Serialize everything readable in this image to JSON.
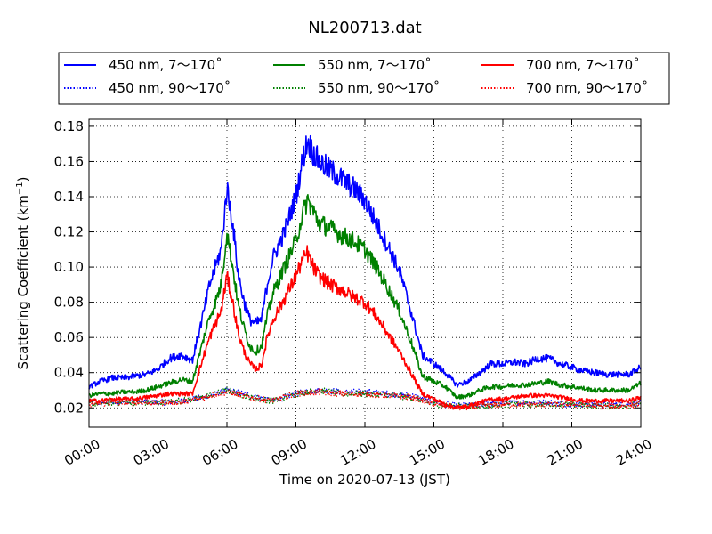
{
  "chart_data": {
    "type": "line",
    "title": "NL200713.dat",
    "xlabel": "Time on 2020-07-13 (JST)",
    "ylabel_main": "Scattering Coefficient (km",
    "ylabel_sup": "−1",
    "ylabel_close": ")",
    "x_unit": "hour",
    "xlim": [
      0,
      24
    ],
    "ylim": [
      0.009,
      0.184
    ],
    "x_ticks": [
      0,
      3,
      6,
      9,
      12,
      15,
      18,
      21,
      24
    ],
    "x_tick_labels": [
      "00:00",
      "03:00",
      "06:00",
      "09:00",
      "12:00",
      "15:00",
      "18:00",
      "21:00",
      "24:00"
    ],
    "y_ticks": [
      0.02,
      0.04,
      0.06,
      0.08,
      0.1,
      0.12,
      0.14,
      0.16,
      0.18
    ],
    "y_tick_labels": [
      "0.02",
      "0.04",
      "0.06",
      "0.08",
      "0.10",
      "0.12",
      "0.14",
      "0.16",
      "0.18"
    ],
    "grid": true,
    "legend_position": "top",
    "series": [
      {
        "name": "450 nm, 7～170˚",
        "color": "#0000ff",
        "style": "solid",
        "x": [
          0,
          0.5,
          1,
          1.5,
          2,
          2.5,
          3,
          3.5,
          4,
          4.5,
          5,
          5.25,
          5.5,
          5.75,
          6,
          6.25,
          6.5,
          6.75,
          7,
          7.25,
          7.5,
          7.75,
          8,
          8.5,
          9,
          9.25,
          9.5,
          9.75,
          10,
          10.5,
          11,
          11.5,
          12,
          12.5,
          13,
          13.5,
          14,
          14.5,
          15,
          15.5,
          16,
          16.5,
          17,
          17.5,
          18,
          18.5,
          19,
          19.5,
          20,
          20.5,
          21,
          21.5,
          22,
          22.5,
          23,
          23.5,
          24
        ],
        "y": [
          0.032,
          0.035,
          0.037,
          0.037,
          0.038,
          0.039,
          0.042,
          0.048,
          0.05,
          0.047,
          0.075,
          0.09,
          0.1,
          0.11,
          0.145,
          0.125,
          0.095,
          0.08,
          0.07,
          0.068,
          0.07,
          0.09,
          0.105,
          0.12,
          0.14,
          0.158,
          0.172,
          0.165,
          0.16,
          0.155,
          0.15,
          0.145,
          0.138,
          0.125,
          0.112,
          0.098,
          0.075,
          0.05,
          0.045,
          0.04,
          0.033,
          0.035,
          0.04,
          0.045,
          0.045,
          0.046,
          0.045,
          0.048,
          0.048,
          0.045,
          0.043,
          0.041,
          0.04,
          0.039,
          0.039,
          0.039,
          0.043
        ]
      },
      {
        "name": "450 nm, 90～170˚",
        "color": "#0000ff",
        "style": "dotted",
        "x": [
          0,
          1,
          2,
          3,
          4,
          5,
          6,
          7,
          8,
          9,
          10,
          11,
          12,
          13,
          14,
          15,
          16,
          17,
          18,
          19,
          20,
          21,
          22,
          23,
          24
        ],
        "y": [
          0.023,
          0.023,
          0.024,
          0.023,
          0.024,
          0.026,
          0.03,
          0.027,
          0.024,
          0.028,
          0.03,
          0.029,
          0.029,
          0.028,
          0.027,
          0.023,
          0.021,
          0.022,
          0.023,
          0.023,
          0.023,
          0.022,
          0.022,
          0.022,
          0.023
        ]
      },
      {
        "name": "550 nm, 7～170˚",
        "color": "#008000",
        "style": "solid",
        "x": [
          0,
          0.5,
          1,
          1.5,
          2,
          2.5,
          3,
          3.5,
          4,
          4.5,
          5,
          5.25,
          5.5,
          5.75,
          6,
          6.25,
          6.5,
          6.75,
          7,
          7.25,
          7.5,
          7.75,
          8,
          8.5,
          9,
          9.25,
          9.5,
          9.75,
          10,
          10.5,
          11,
          11.5,
          12,
          12.5,
          13,
          13.5,
          14,
          14.5,
          15,
          15.5,
          16,
          16.5,
          17,
          17.5,
          18,
          18.5,
          19,
          19.5,
          20,
          20.5,
          21,
          21.5,
          22,
          22.5,
          23,
          23.5,
          24
        ],
        "y": [
          0.027,
          0.028,
          0.028,
          0.029,
          0.029,
          0.03,
          0.032,
          0.034,
          0.036,
          0.035,
          0.06,
          0.072,
          0.08,
          0.09,
          0.12,
          0.1,
          0.078,
          0.065,
          0.055,
          0.052,
          0.055,
          0.072,
          0.085,
          0.1,
          0.115,
          0.128,
          0.138,
          0.132,
          0.125,
          0.122,
          0.118,
          0.115,
          0.11,
          0.1,
          0.088,
          0.075,
          0.058,
          0.038,
          0.035,
          0.032,
          0.026,
          0.027,
          0.03,
          0.032,
          0.032,
          0.033,
          0.033,
          0.034,
          0.035,
          0.033,
          0.032,
          0.031,
          0.03,
          0.03,
          0.03,
          0.03,
          0.034
        ]
      },
      {
        "name": "550 nm, 90～170˚",
        "color": "#008000",
        "style": "dotted",
        "x": [
          0,
          1,
          2,
          3,
          4,
          5,
          6,
          7,
          8,
          9,
          10,
          11,
          12,
          13,
          14,
          15,
          16,
          17,
          18,
          19,
          20,
          21,
          22,
          23,
          24
        ],
        "y": [
          0.022,
          0.023,
          0.023,
          0.023,
          0.024,
          0.026,
          0.03,
          0.026,
          0.024,
          0.028,
          0.03,
          0.028,
          0.028,
          0.027,
          0.026,
          0.022,
          0.021,
          0.021,
          0.022,
          0.022,
          0.022,
          0.022,
          0.021,
          0.021,
          0.022
        ]
      },
      {
        "name": "700 nm, 7～170˚",
        "color": "#ff0000",
        "style": "solid",
        "x": [
          0,
          0.5,
          1,
          1.5,
          2,
          2.5,
          3,
          3.5,
          4,
          4.5,
          5,
          5.25,
          5.5,
          5.75,
          6,
          6.25,
          6.5,
          6.75,
          7,
          7.25,
          7.5,
          7.75,
          8,
          8.5,
          9,
          9.25,
          9.5,
          9.75,
          10,
          10.5,
          11,
          11.5,
          12,
          12.5,
          13,
          13.5,
          14,
          14.5,
          15,
          15.5,
          16,
          16.5,
          17,
          17.5,
          18,
          18.5,
          19,
          19.5,
          20,
          20.5,
          21,
          21.5,
          22,
          22.5,
          23,
          23.5,
          24
        ],
        "y": [
          0.024,
          0.024,
          0.025,
          0.025,
          0.025,
          0.026,
          0.027,
          0.028,
          0.028,
          0.028,
          0.05,
          0.06,
          0.068,
          0.075,
          0.095,
          0.08,
          0.062,
          0.052,
          0.045,
          0.042,
          0.044,
          0.06,
          0.07,
          0.082,
          0.095,
          0.103,
          0.108,
          0.1,
          0.095,
          0.09,
          0.087,
          0.083,
          0.08,
          0.072,
          0.062,
          0.052,
          0.04,
          0.028,
          0.025,
          0.022,
          0.02,
          0.021,
          0.023,
          0.025,
          0.025,
          0.026,
          0.027,
          0.027,
          0.027,
          0.026,
          0.025,
          0.024,
          0.024,
          0.024,
          0.024,
          0.024,
          0.026
        ]
      },
      {
        "name": "700 nm, 90～170˚",
        "color": "#ff0000",
        "style": "dotted",
        "x": [
          0,
          1,
          2,
          3,
          4,
          5,
          6,
          7,
          8,
          9,
          10,
          11,
          12,
          13,
          14,
          15,
          16,
          17,
          18,
          19,
          20,
          21,
          22,
          23,
          24
        ],
        "y": [
          0.022,
          0.023,
          0.023,
          0.023,
          0.023,
          0.026,
          0.029,
          0.026,
          0.024,
          0.028,
          0.029,
          0.028,
          0.028,
          0.027,
          0.026,
          0.022,
          0.02,
          0.021,
          0.022,
          0.022,
          0.022,
          0.022,
          0.021,
          0.021,
          0.022
        ]
      }
    ]
  }
}
